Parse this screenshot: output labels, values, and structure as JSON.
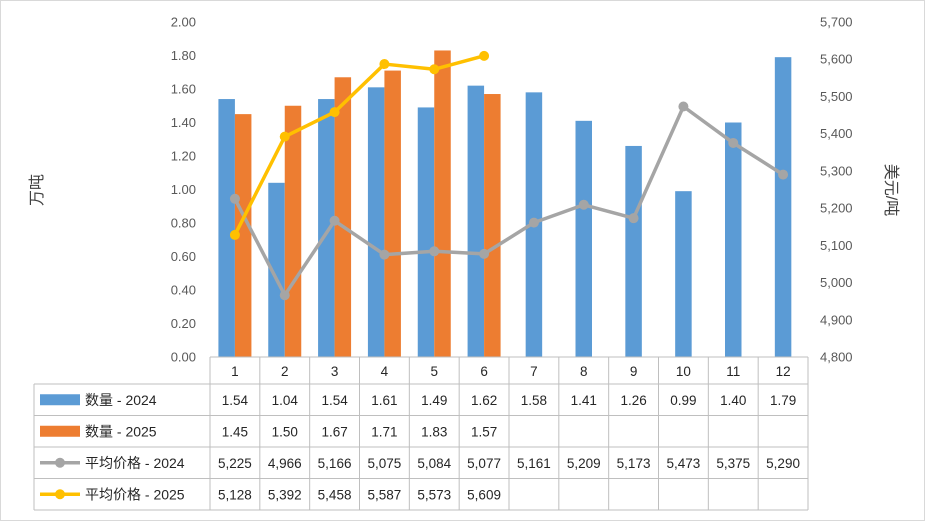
{
  "chart_data": {
    "type": "bar",
    "categories": [
      "1",
      "2",
      "3",
      "4",
      "5",
      "6",
      "7",
      "8",
      "9",
      "10",
      "11",
      "12"
    ],
    "ylabel_left": "万吨",
    "ylabel_right": "美元/吨",
    "ylim_left": [
      0,
      2.0
    ],
    "yticks_left": [
      "0.00",
      "0.20",
      "0.40",
      "0.60",
      "0.80",
      "1.00",
      "1.20",
      "1.40",
      "1.60",
      "1.80",
      "2.00"
    ],
    "ylim_right": [
      4800,
      5700
    ],
    "yticks_right": [
      "4,800",
      "4,900",
      "5,000",
      "5,100",
      "5,200",
      "5,300",
      "5,400",
      "5,500",
      "5,600",
      "5,700"
    ],
    "legend_placement": "data-table",
    "grid": false,
    "series": [
      {
        "name": "数量 - 2024",
        "kind": "bar",
        "axis": "left",
        "color": "#5b9bd5",
        "values": [
          1.54,
          1.04,
          1.54,
          1.61,
          1.49,
          1.62,
          1.58,
          1.41,
          1.26,
          0.99,
          1.4,
          1.79
        ],
        "labels": [
          "1.54",
          "1.04",
          "1.54",
          "1.61",
          "1.49",
          "1.62",
          "1.58",
          "1.41",
          "1.26",
          "0.99",
          "1.40",
          "1.79"
        ]
      },
      {
        "name": "数量 - 2025",
        "kind": "bar",
        "axis": "left",
        "color": "#ed7d31",
        "values": [
          1.45,
          1.5,
          1.67,
          1.71,
          1.83,
          1.57,
          null,
          null,
          null,
          null,
          null,
          null
        ],
        "labels": [
          "1.45",
          "1.50",
          "1.67",
          "1.71",
          "1.83",
          "1.57",
          "",
          "",
          "",
          "",
          "",
          ""
        ]
      },
      {
        "name": "平均价格 - 2024",
        "kind": "line",
        "axis": "right",
        "color": "#a5a5a5",
        "values": [
          5225,
          4966,
          5166,
          5075,
          5084,
          5077,
          5161,
          5209,
          5173,
          5473,
          5375,
          5290
        ],
        "labels": [
          "5,225",
          "4,966",
          "5,166",
          "5,075",
          "5,084",
          "5,077",
          "5,161",
          "5,209",
          "5,173",
          "5,473",
          "5,375",
          "5,290"
        ]
      },
      {
        "name": "平均价格 - 2025",
        "kind": "line",
        "axis": "right",
        "color": "#ffc000",
        "values": [
          5128,
          5392,
          5458,
          5587,
          5573,
          5609,
          null,
          null,
          null,
          null,
          null,
          null
        ],
        "labels": [
          "5,128",
          "5,392",
          "5,458",
          "5,587",
          "5,573",
          "5,609",
          "",
          "",
          "",
          "",
          "",
          ""
        ]
      }
    ]
  }
}
